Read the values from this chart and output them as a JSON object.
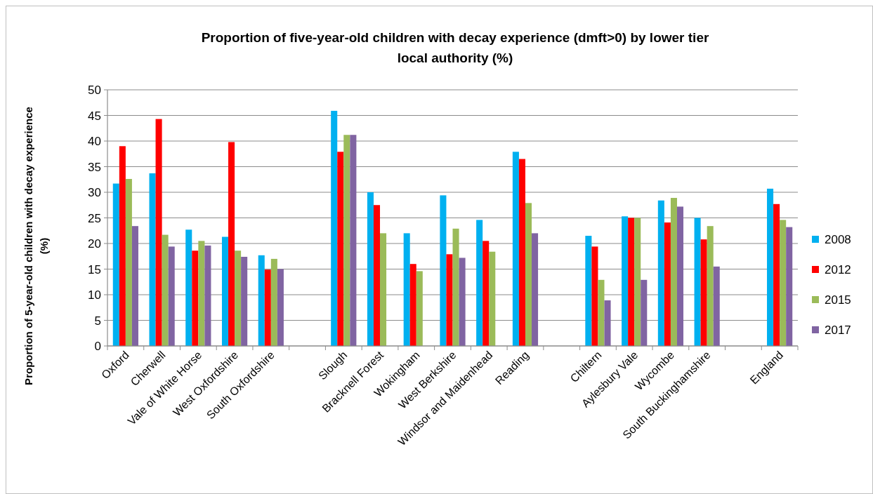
{
  "chart_data": {
    "type": "bar",
    "title": "Proportion of five-year-old children with decay experience (dmft>0) by lower tier local authority (%)",
    "ylabel": "Proportion of 5-year-old children with decay experience (%)",
    "categories": [
      "Oxford",
      "Cherwell",
      "Vale of White Horse",
      "West Oxfordshire",
      "South Oxfordshire",
      null,
      "Slough",
      "Bracknell Forest",
      "Wokingham",
      "West Berkshire",
      "Windsor and Maidenhead",
      "Reading",
      null,
      "Chiltern",
      "Aylesbury Vale",
      "Wycombe",
      "South Buckinghamshire",
      null,
      "England"
    ],
    "series": [
      {
        "name": "2008",
        "color": "#00b0f0",
        "values": [
          31.7,
          33.7,
          22.7,
          21.3,
          17.7,
          null,
          45.9,
          30.0,
          22.0,
          29.4,
          24.6,
          37.9,
          null,
          21.5,
          25.3,
          28.4,
          25.0,
          null,
          30.7
        ]
      },
      {
        "name": "2012",
        "color": "#ff0000",
        "values": [
          39.0,
          44.3,
          18.6,
          39.8,
          14.9,
          null,
          37.9,
          27.5,
          16.0,
          17.9,
          20.5,
          36.5,
          null,
          19.4,
          25.0,
          24.1,
          20.8,
          null,
          27.7
        ]
      },
      {
        "name": "2015",
        "color": "#9bbb59",
        "values": [
          32.6,
          21.7,
          20.5,
          18.6,
          17.0,
          null,
          41.2,
          22.0,
          14.6,
          22.9,
          18.4,
          27.9,
          null,
          12.9,
          25.0,
          28.9,
          23.4,
          null,
          24.6
        ]
      },
      {
        "name": "2017",
        "color": "#8064a2",
        "values": [
          23.4,
          19.4,
          19.6,
          17.4,
          15.0,
          null,
          41.2,
          null,
          null,
          17.2,
          null,
          22.0,
          null,
          8.9,
          12.9,
          27.2,
          15.5,
          null,
          23.2
        ]
      }
    ],
    "ylim": [
      0,
      50
    ],
    "yticks": [
      0,
      5,
      10,
      15,
      20,
      25,
      30,
      35,
      40,
      45,
      50
    ],
    "grid": "y",
    "legend": "right"
  }
}
